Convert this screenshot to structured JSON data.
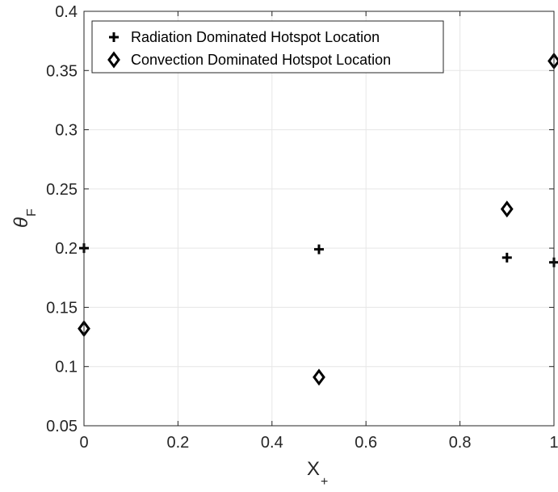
{
  "chart_data": {
    "type": "scatter",
    "xlabel": "X",
    "xlabel_sub": "+",
    "ylabel": "θ",
    "ylabel_sub": "F",
    "xlim": [
      0,
      1
    ],
    "ylim": [
      0.05,
      0.4
    ],
    "xticks": [
      0,
      0.2,
      0.4,
      0.6,
      0.8,
      1
    ],
    "xtick_labels": [
      "0",
      "0.2",
      "0.4",
      "0.6",
      "0.8",
      "1"
    ],
    "yticks": [
      0.05,
      0.1,
      0.15,
      0.2,
      0.25,
      0.3,
      0.35,
      0.4
    ],
    "ytick_labels": [
      "0.05",
      "0.1",
      "0.15",
      "0.2",
      "0.25",
      "0.3",
      "0.35",
      "0.4"
    ],
    "grid": true,
    "legend_position": "top-left",
    "series": [
      {
        "name": "Radiation Dominated Hotspot Location",
        "marker": "plus",
        "color": "#000000",
        "x": [
          0,
          0.5,
          0.9,
          1
        ],
        "y": [
          0.2,
          0.199,
          0.192,
          0.188
        ]
      },
      {
        "name": "Convection Dominated Hotspot Location",
        "marker": "diamond",
        "color": "#000000",
        "x": [
          0,
          0.5,
          0.9,
          1
        ],
        "y": [
          0.132,
          0.091,
          0.233,
          0.358
        ]
      }
    ]
  }
}
